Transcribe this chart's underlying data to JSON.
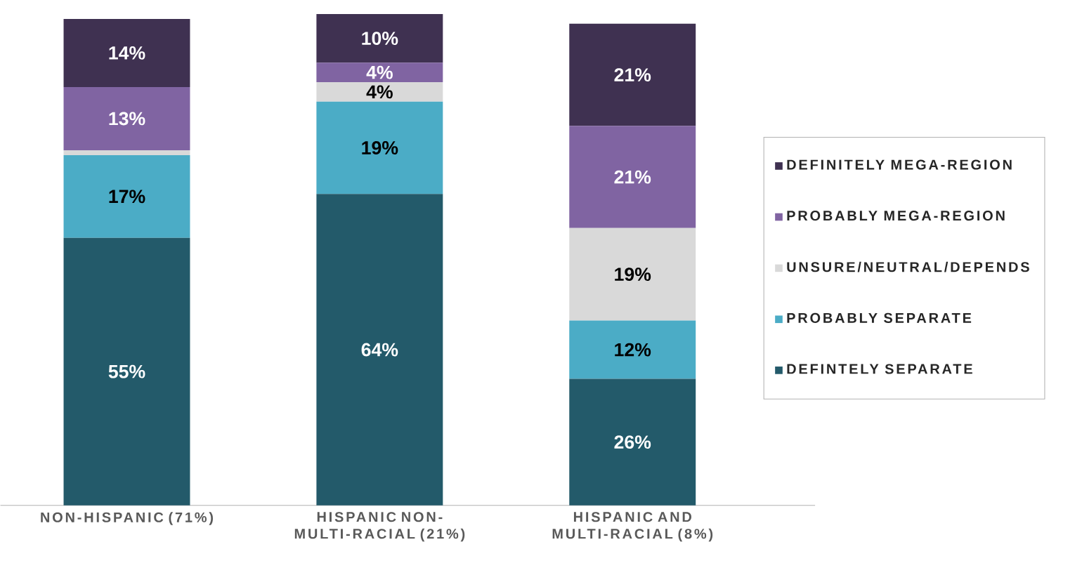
{
  "chart_data": {
    "type": "bar",
    "stacked": true,
    "legend": "right",
    "categories": [
      "NON-HISPANIC (71%)",
      "HISPANIC NON-MULTI-RACIAL (21%)",
      "HISPANIC AND MULTI-RACIAL (8%)"
    ],
    "series": [
      {
        "name": "DEFINTELY SEPARATE",
        "color": "#235a6a",
        "values": [
          55,
          64,
          26
        ],
        "value_labels": [
          "55%",
          "64%",
          "26%"
        ]
      },
      {
        "name": "PROBABLY SEPARATE",
        "color": "#4bacc6",
        "values": [
          17,
          19,
          12
        ],
        "value_labels": [
          "17%",
          "19%",
          "12%"
        ]
      },
      {
        "name": "UNSURE/NEUTRAL/DEPENDS",
        "color": "#d9d9d9",
        "values": [
          1,
          4,
          19
        ],
        "value_labels": [
          null,
          "4%",
          "19%"
        ]
      },
      {
        "name": "PROBABLY MEGA-REGION",
        "color": "#8064a2",
        "values": [
          13,
          4,
          21
        ],
        "value_labels": [
          "13%",
          "4%",
          "21%"
        ]
      },
      {
        "name": "DEFINITELY MEGA-REGION",
        "color": "#3f3151",
        "values": [
          14,
          10,
          21
        ],
        "value_labels": [
          "14%",
          "10%",
          "21%"
        ]
      }
    ]
  }
}
